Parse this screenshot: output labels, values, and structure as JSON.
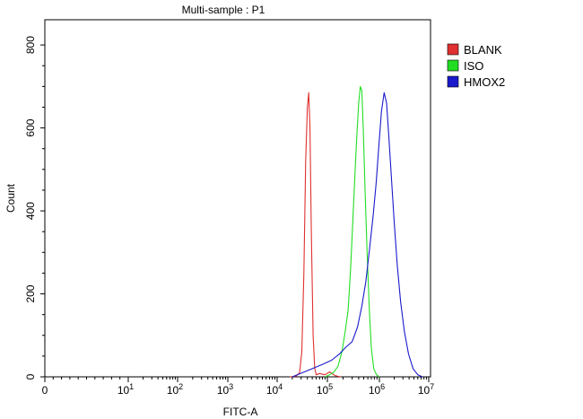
{
  "chart_data": {
    "type": "line",
    "title": "Multi-sample : P1",
    "xlabel": "FITC-A",
    "ylabel": "Count",
    "xscale": "biexponential-log",
    "xlim": [
      0,
      10000000
    ],
    "ylim": [
      0,
      850
    ],
    "y_ticks": [
      0,
      200,
      400,
      600,
      800
    ],
    "y_tick_labels": [
      "0",
      "200",
      "400",
      "600",
      "800"
    ],
    "x_ticks": [
      0,
      10,
      100,
      1000,
      10000,
      100000,
      1000000,
      10000000
    ],
    "x_tick_labels": [
      {
        "base": "0",
        "exp": ""
      },
      {
        "base": "10",
        "exp": "1"
      },
      {
        "base": "10",
        "exp": "2"
      },
      {
        "base": "10",
        "exp": "3"
      },
      {
        "base": "10",
        "exp": "4"
      },
      {
        "base": "10",
        "exp": "5"
      },
      {
        "base": "10",
        "exp": "6"
      },
      {
        "base": "10",
        "exp": "7"
      }
    ],
    "grid": false,
    "legend_position": "top-right",
    "series": [
      {
        "name": "BLANK",
        "color": "#e03030",
        "points": [
          [
            18000,
            0
          ],
          [
            24000,
            2
          ],
          [
            28000,
            10
          ],
          [
            31000,
            60
          ],
          [
            34000,
            250
          ],
          [
            37000,
            520
          ],
          [
            40000,
            650
          ],
          [
            42500,
            685
          ],
          [
            45000,
            600
          ],
          [
            48000,
            350
          ],
          [
            52000,
            100
          ],
          [
            56000,
            20
          ],
          [
            60000,
            5
          ],
          [
            70000,
            8
          ],
          [
            90000,
            5
          ],
          [
            110000,
            12
          ],
          [
            140000,
            3
          ],
          [
            180000,
            0
          ]
        ]
      },
      {
        "name": "ISO",
        "color": "#22dd22",
        "points": [
          [
            90000,
            0
          ],
          [
            110000,
            5
          ],
          [
            130000,
            10
          ],
          [
            160000,
            25
          ],
          [
            190000,
            60
          ],
          [
            220000,
            110
          ],
          [
            250000,
            160
          ],
          [
            280000,
            260
          ],
          [
            320000,
            420
          ],
          [
            360000,
            560
          ],
          [
            400000,
            660
          ],
          [
            430000,
            700
          ],
          [
            460000,
            690
          ],
          [
            490000,
            600
          ],
          [
            530000,
            450
          ],
          [
            580000,
            300
          ],
          [
            640000,
            160
          ],
          [
            700000,
            70
          ],
          [
            780000,
            20
          ],
          [
            880000,
            5
          ],
          [
            1000000,
            0
          ]
        ]
      },
      {
        "name": "HMOX2",
        "color": "#1a1acc",
        "points": [
          [
            20000,
            0
          ],
          [
            40000,
            15
          ],
          [
            80000,
            30
          ],
          [
            120000,
            40
          ],
          [
            170000,
            55
          ],
          [
            220000,
            70
          ],
          [
            300000,
            85
          ],
          [
            380000,
            120
          ],
          [
            460000,
            170
          ],
          [
            550000,
            230
          ],
          [
            650000,
            310
          ],
          [
            760000,
            390
          ],
          [
            870000,
            470
          ],
          [
            980000,
            560
          ],
          [
            1100000,
            640
          ],
          [
            1250000,
            685
          ],
          [
            1400000,
            660
          ],
          [
            1550000,
            580
          ],
          [
            1750000,
            480
          ],
          [
            2000000,
            370
          ],
          [
            2300000,
            270
          ],
          [
            2700000,
            180
          ],
          [
            3200000,
            110
          ],
          [
            3900000,
            55
          ],
          [
            4800000,
            20
          ],
          [
            6000000,
            5
          ],
          [
            7500000,
            0
          ]
        ]
      }
    ]
  }
}
